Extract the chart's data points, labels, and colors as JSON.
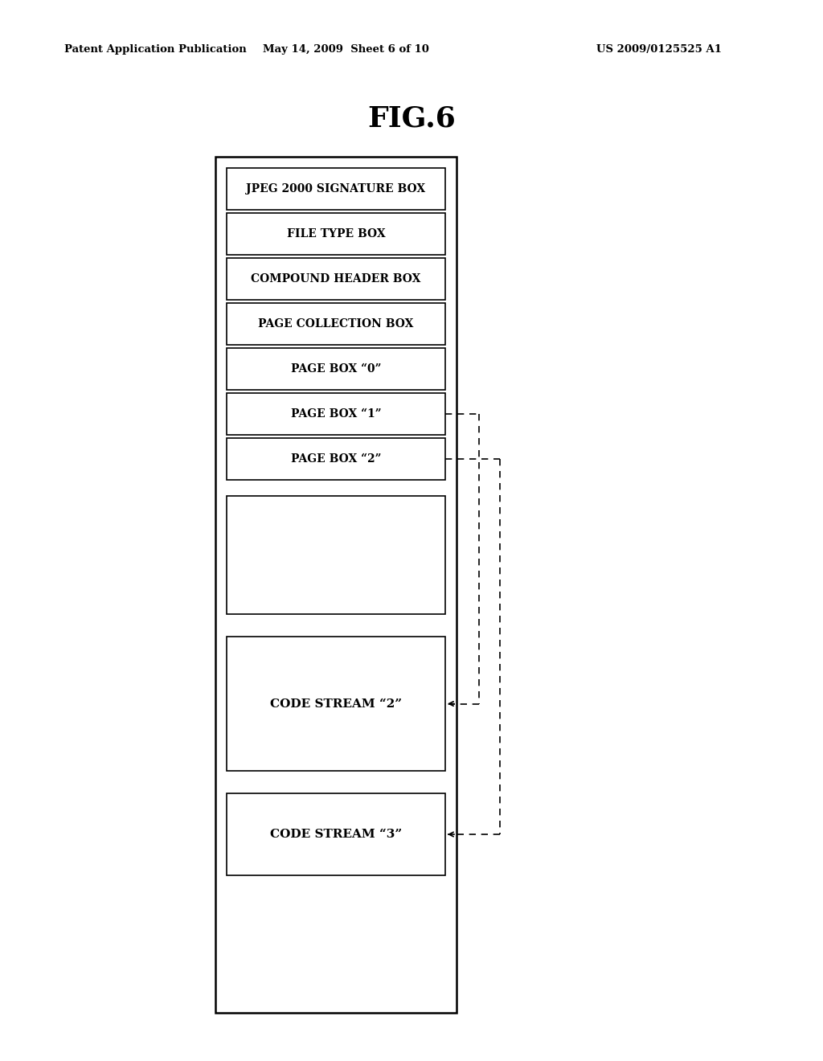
{
  "title": "FIG.6",
  "header_left": "Patent Application Publication",
  "header_mid": "May 14, 2009  Sheet 6 of 10",
  "header_right": "US 2009/0125525 A1",
  "bg_color": "#ffffff",
  "boxes": [
    {
      "label": "JPEG 2000 SIGNATURE BOX"
    },
    {
      "label": "FILE TYPE BOX"
    },
    {
      "label": "COMPOUND HEADER BOX"
    },
    {
      "label": "PAGE COLLECTION BOX"
    },
    {
      "label": "PAGE BOX “0”"
    },
    {
      "label": "PAGE BOX “1”"
    },
    {
      "label": "PAGE BOX “2”"
    }
  ],
  "large_boxes": [
    {
      "label": ""
    },
    {
      "label": "CODE STREAM “2”"
    },
    {
      "label": "CODE STREAM “3”"
    }
  ]
}
